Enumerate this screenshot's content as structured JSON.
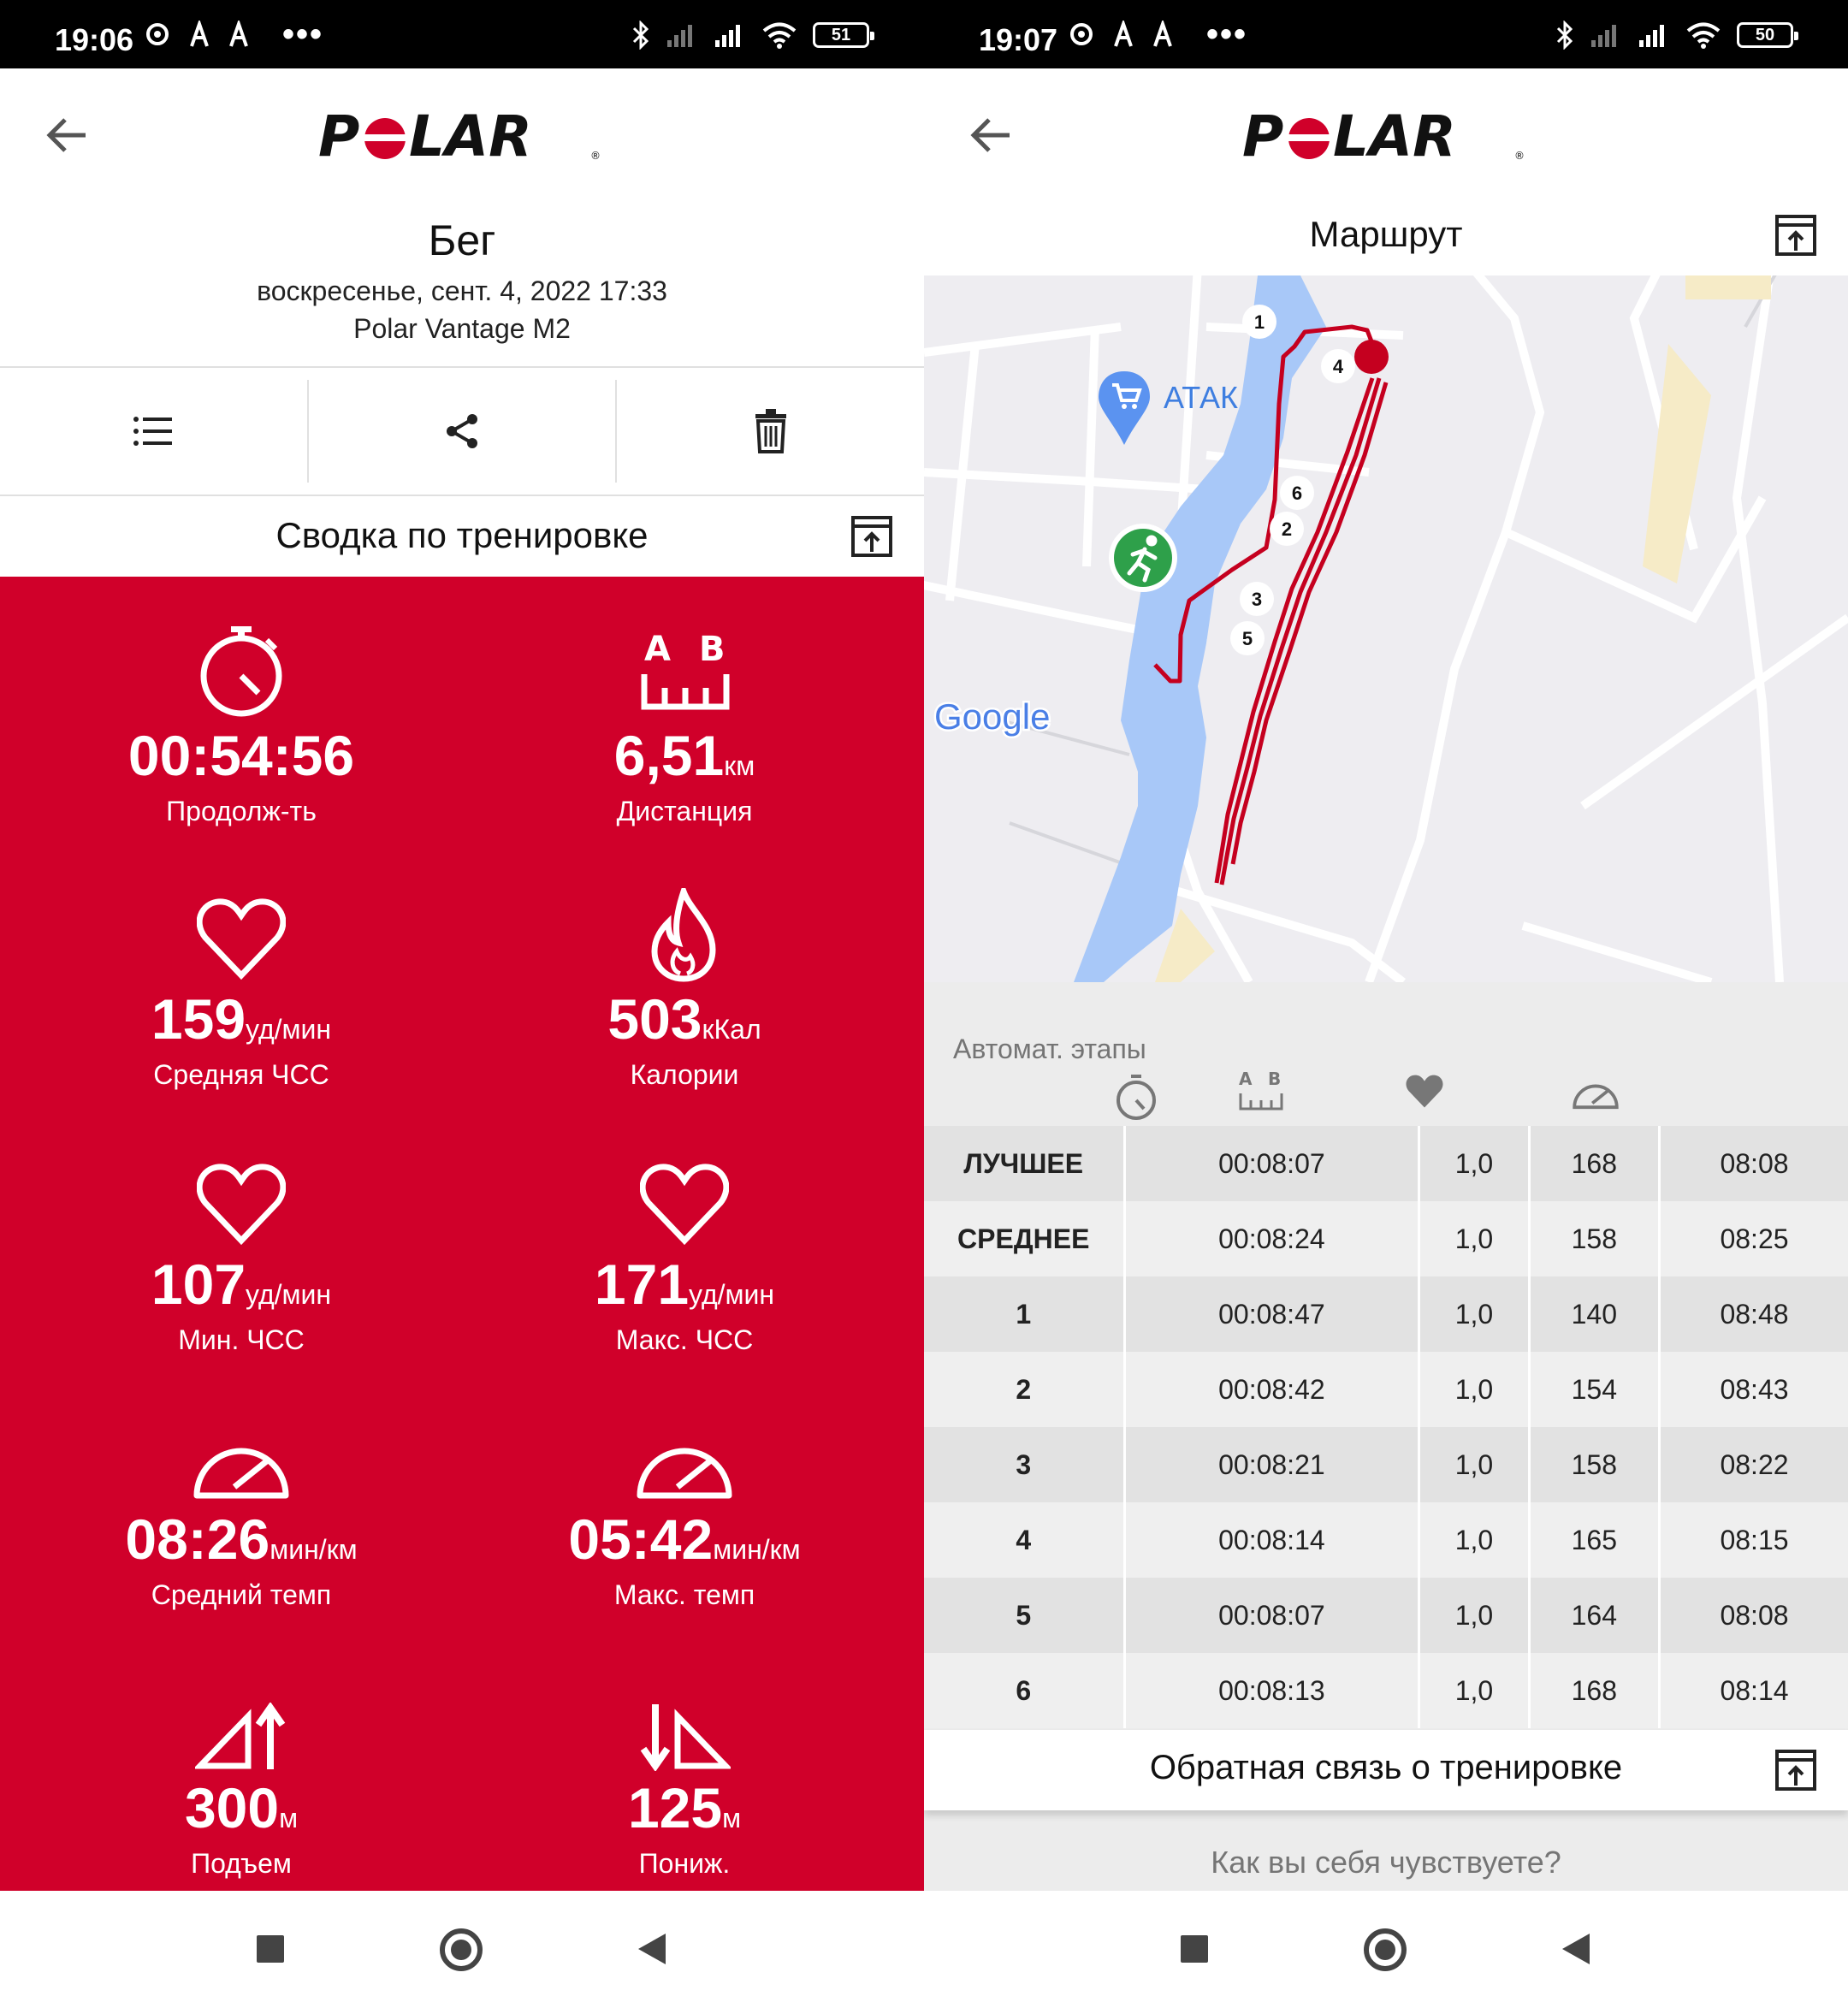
{
  "left": {
    "status": {
      "time": "19:06",
      "battery": "51"
    },
    "activity": {
      "title": "Бег",
      "datetime": "воскресенье, сент. 4, 2022 17:33",
      "device": "Polar Vantage M2"
    },
    "summary_title": "Сводка по тренировке",
    "metrics": {
      "duration": {
        "value": "00:54:56",
        "unit": "",
        "label": "Продолж-ть"
      },
      "distance": {
        "value": "6,51",
        "unit": "км",
        "label": "Дистанция"
      },
      "avg_hr": {
        "value": "159",
        "unit": "уд/мин",
        "label": "Средняя ЧСС"
      },
      "calories": {
        "value": "503",
        "unit": "кКал",
        "label": "Калории"
      },
      "min_hr": {
        "value": "107",
        "unit": "уд/мин",
        "label": "Мин. ЧСС"
      },
      "max_hr": {
        "value": "171",
        "unit": "уд/мин",
        "label": "Макс. ЧСС"
      },
      "avg_pace": {
        "value": "08:26",
        "unit": "мин/км",
        "label": "Средний темп"
      },
      "max_pace": {
        "value": "05:42",
        "unit": "мин/км",
        "label": "Макс. темп"
      },
      "ascent": {
        "value": "300",
        "unit": "м",
        "label": "Подъем"
      },
      "descent": {
        "value": "125",
        "unit": "м",
        "label": "Пониж."
      }
    },
    "distance_icon_letters": {
      "a": "A",
      "b": "B"
    }
  },
  "right": {
    "status": {
      "time": "19:07",
      "battery": "50"
    },
    "route_title": "Маршрут",
    "map": {
      "place_label": "АТАК",
      "provider": "Google",
      "lap_markers": [
        "1",
        "2",
        "3",
        "4",
        "5",
        "6"
      ]
    },
    "laps": {
      "title": "Автомат. этапы",
      "head_letters": {
        "a": "A",
        "b": "B"
      },
      "rows": [
        [
          "ЛУЧШЕЕ",
          "00:08:07",
          "1,0",
          "168",
          "08:08"
        ],
        [
          "СРЕДНЕЕ",
          "00:08:24",
          "1,0",
          "158",
          "08:25"
        ],
        [
          "1",
          "00:08:47",
          "1,0",
          "140",
          "08:48"
        ],
        [
          "2",
          "00:08:42",
          "1,0",
          "154",
          "08:43"
        ],
        [
          "3",
          "00:08:21",
          "1,0",
          "158",
          "08:22"
        ],
        [
          "4",
          "00:08:14",
          "1,0",
          "165",
          "08:15"
        ],
        [
          "5",
          "00:08:07",
          "1,0",
          "164",
          "08:08"
        ],
        [
          "6",
          "00:08:13",
          "1,0",
          "168",
          "08:14"
        ]
      ]
    },
    "feedback_title": "Обратная связь о тренировке",
    "feel_question": "Как вы себя чувствуете?"
  },
  "brand": {
    "accent": "#d0002a",
    "logo": "POLAR"
  },
  "icons": [
    "back-arrow-icon",
    "list-icon",
    "share-icon",
    "trash-icon",
    "expand-icon",
    "stopwatch-icon",
    "distance-icon",
    "heart-icon",
    "flame-icon",
    "speedometer-icon",
    "ascent-icon",
    "descent-icon",
    "runner-icon",
    "shop-pin-icon"
  ]
}
